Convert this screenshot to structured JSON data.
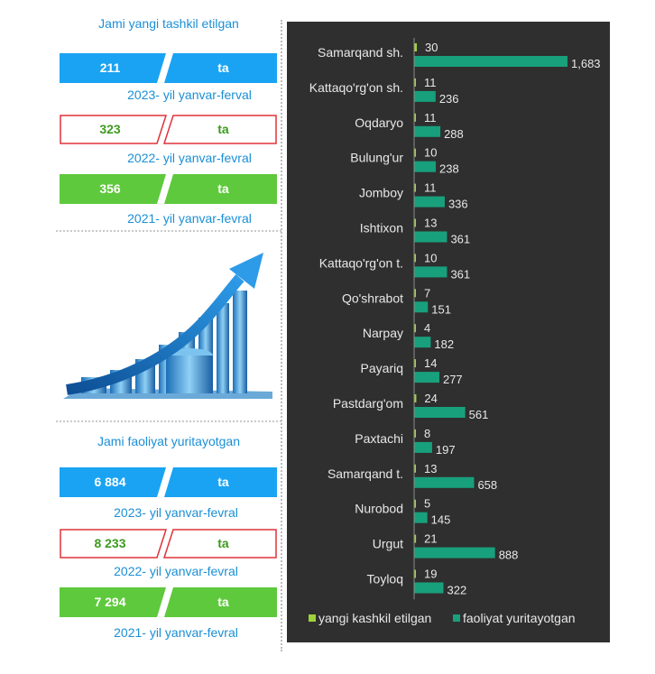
{
  "left_panel": {
    "section1_title": "Jami yangi tashkil etilgan",
    "section1_stats": [
      {
        "value": "211",
        "unit": "ta",
        "caption": "2023- yil yanvar-ferval",
        "style": "blue"
      },
      {
        "value": "323",
        "unit": "ta",
        "caption": "2022- yil yanvar-fevral",
        "style": "outline"
      },
      {
        "value": "356",
        "unit": "ta",
        "caption": "2021- yil yanvar-fevral",
        "style": "green"
      }
    ],
    "section2_title": "Jami faoliyat yuritayotgan",
    "section2_stats": [
      {
        "value": "6 884",
        "unit": "ta",
        "caption": "2023- yil yanvar-fevral",
        "style": "blue"
      },
      {
        "value": "8 233",
        "unit": "ta",
        "caption": "2022- yil yanvar-fevral",
        "style": "outline"
      },
      {
        "value": "7 294",
        "unit": "ta",
        "caption": "2021- yil yanvar-fevral",
        "style": "green"
      }
    ],
    "illustration_icon": "growth-arrow-city-icon"
  },
  "colors": {
    "blue": "#1aa3f2",
    "green": "#5ec93c",
    "outline_border": "#e0323a",
    "outline_text": "#3d9a1f",
    "chart_bg": "#2f2f2f",
    "series_new": "#9fd23a",
    "series_active": "#18a07c"
  },
  "chart_data": {
    "type": "bar",
    "orientation": "horizontal",
    "categories": [
      "Samarqand sh.",
      "Kattaqo'rg'on sh.",
      "Oqdaryo",
      "Bulung'ur",
      "Jomboy",
      "Ishtixon",
      "Kattaqo'rg'on t.",
      "Qo'shrabot",
      "Narpay",
      "Payariq",
      "Pastdarg'om",
      "Paxtachi",
      "Samarqand t.",
      "Nurobod",
      "Urgut",
      "Toyloq"
    ],
    "series": [
      {
        "name": "yangi kashkil etilgan",
        "values": [
          30,
          11,
          11,
          10,
          11,
          13,
          10,
          7,
          4,
          14,
          24,
          8,
          13,
          5,
          21,
          19
        ],
        "labels": [
          "30",
          "11",
          "11",
          "10",
          "11",
          "13",
          "10",
          "7",
          "4",
          "14",
          "24",
          "8",
          "13",
          "5",
          "21",
          "19"
        ]
      },
      {
        "name": "faoliyat yuritayotgan",
        "values": [
          1683,
          236,
          288,
          238,
          336,
          361,
          361,
          151,
          182,
          277,
          561,
          197,
          658,
          145,
          888,
          322
        ],
        "labels": [
          "1,683",
          "236",
          "288",
          "238",
          "336",
          "361",
          "361",
          "151",
          "182",
          "277",
          "561",
          "197",
          "658",
          "145",
          "888",
          "322"
        ]
      }
    ],
    "xlim": [
      0,
      1683
    ],
    "legend_position": "bottom",
    "grid": false
  }
}
